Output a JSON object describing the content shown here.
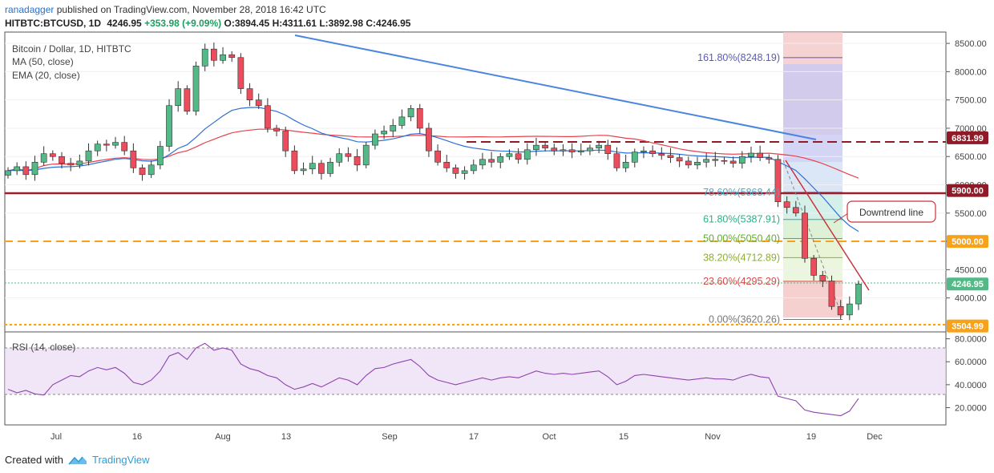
{
  "header": {
    "user": "ranadagger",
    "published": "published on TradingView.com, November 28, 2018 16:42 UTC",
    "symbol": "HITBTC:BTCUSD, 1D",
    "last": "4246.95",
    "change": "+353.98 (+9.09%)",
    "o_label": "O:",
    "o": "3894.45",
    "h_label": "H:",
    "h": "4311.61",
    "l_label": "L:",
    "l": "3892.98",
    "c_label": "C:",
    "c": "4246.95"
  },
  "footer": {
    "created_with": "Created with",
    "brand": "TradingView"
  },
  "colors": {
    "up": "#53b987",
    "down": "#eb4d5c",
    "ma": "#e8414b",
    "ema": "#2f6fd8",
    "support": "#9c1e2a",
    "dashed_red": "#8e1b27",
    "orange": "#f7a21b",
    "trend_blue": "#4a86e0",
    "trend_red": "#c8333d",
    "fib_purple_bg": "#c9c9f2",
    "fib_red_bg": "#f4c7c7"
  },
  "chart_data": {
    "type": "candlestick",
    "title": "Bitcoin / Dollar, 1D, HITBTC",
    "indicators": [
      "MA (50, close)",
      "EMA (20, close)"
    ],
    "y_range": [
      3400,
      8700
    ],
    "y_ticks": [
      "8500.00",
      "8000.00",
      "7500.00",
      "7000.00",
      "6500.00",
      "6000.00",
      "5500.00",
      "5000.00",
      "4500.00",
      "4000.00"
    ],
    "x_ticks": [
      "Jul",
      "16",
      "Aug",
      "13",
      "Sep",
      "17",
      "Oct",
      "15",
      "Nov",
      "19",
      "Dec"
    ],
    "price_labels": [
      {
        "text": "6831.99",
        "value": 6831.99,
        "color": "#8e1b27"
      },
      {
        "text": "5900.00",
        "value": 5900.0,
        "color": "#8e1b27"
      },
      {
        "text": "5000.00",
        "value": 5000.0,
        "color": "#f7a21b"
      },
      {
        "text": "4246.95",
        "value": 4246.95,
        "color": "#53b987"
      },
      {
        "text": "3504.99",
        "value": 3504.99,
        "color": "#f7a21b"
      }
    ],
    "fib_levels": [
      {
        "label": "161.80%(8248.19)",
        "value": 8248.19,
        "color": "#5a5ab8"
      },
      {
        "label": "78.60%(5868.44)",
        "value": 5868.44,
        "color": "#4aa7c9"
      },
      {
        "label": "61.80%(5387.91)",
        "value": 5387.91,
        "color": "#2fb08a"
      },
      {
        "label": "50.00%(5050.40)",
        "value": 5050.4,
        "color": "#64ad2d"
      },
      {
        "label": "38.20%(4712.89)",
        "value": 4712.89,
        "color": "#8db02c"
      },
      {
        "label": "23.60%(4295.29)",
        "value": 4295.29,
        "color": "#d84b4b"
      },
      {
        "label": "0.00%(3620.26)",
        "value": 3620.26,
        "color": "#777777"
      }
    ],
    "annotation": "Downtrend line",
    "closes": [
      6250,
      6320,
      6180,
      6400,
      6550,
      6500,
      6380,
      6350,
      6420,
      6600,
      6720,
      6700,
      6750,
      6600,
      6300,
      6180,
      6350,
      6680,
      7400,
      7700,
      7300,
      8100,
      8400,
      8200,
      8300,
      8250,
      7700,
      7500,
      7400,
      7000,
      6950,
      6600,
      6250,
      6280,
      6380,
      6200,
      6400,
      6550,
      6500,
      6350,
      6700,
      6900,
      6950,
      7050,
      7200,
      7350,
      7000,
      6600,
      6400,
      6300,
      6200,
      6250,
      6350,
      6450,
      6400,
      6500,
      6550,
      6450,
      6620,
      6700,
      6650,
      6600,
      6620,
      6580,
      6600,
      6650,
      6700,
      6550,
      6300,
      6400,
      6580,
      6600,
      6550,
      6520,
      6480,
      6420,
      6350,
      6400,
      6450,
      6430,
      6420,
      6380,
      6500,
      6560,
      6480,
      6450,
      5700,
      5600,
      5500,
      4700,
      4400,
      4300,
      3850,
      3700,
      3894.45,
      4246.95
    ],
    "rsi": {
      "label": "RSI (14, close)",
      "y_ticks": [
        "80.0000",
        "60.0000",
        "40.0000",
        "20.0000"
      ],
      "band": [
        30,
        70
      ],
      "values": [
        36,
        33,
        35,
        32,
        31,
        40,
        44,
        48,
        47,
        52,
        55,
        53,
        55,
        50,
        42,
        40,
        44,
        52,
        65,
        68,
        62,
        72,
        76,
        70,
        72,
        70,
        58,
        54,
        52,
        48,
        46,
        40,
        36,
        38,
        41,
        38,
        42,
        46,
        44,
        40,
        48,
        54,
        55,
        58,
        60,
        62,
        56,
        48,
        44,
        42,
        40,
        42,
        44,
        46,
        44,
        46,
        47,
        46,
        49,
        52,
        50,
        49,
        50,
        49,
        50,
        51,
        52,
        47,
        40,
        43,
        48,
        49,
        48,
        47,
        46,
        45,
        44,
        45,
        46,
        45,
        45,
        44,
        47,
        49,
        47,
        46,
        30,
        28,
        26,
        18,
        16,
        15,
        14,
        13,
        17,
        28
      ]
    }
  }
}
